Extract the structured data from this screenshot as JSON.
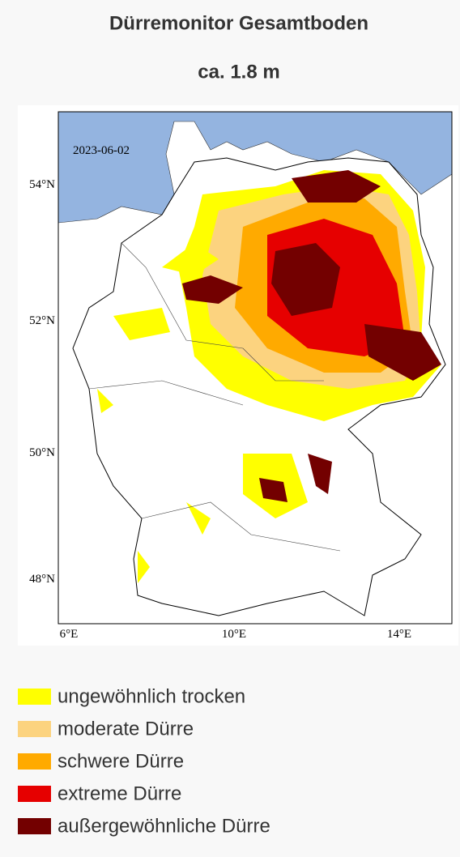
{
  "header": {
    "title": "Dürremonitor Gesamtboden",
    "subtitle": "ca. 1.8 m"
  },
  "map": {
    "date": "2023-06-02",
    "lat_labels": [
      "54°N",
      "52°N",
      "50°N",
      "48°N"
    ],
    "lon_labels": [
      "6°E",
      "10°E",
      "14°E"
    ]
  },
  "legend": [
    {
      "label": "ungewöhnlich trocken",
      "color": "#ffff00"
    },
    {
      "label": "moderate Dürre",
      "color": "#fcd37f"
    },
    {
      "label": "schwere Dürre",
      "color": "#ffaa00"
    },
    {
      "label": "extreme Dürre",
      "color": "#e60000"
    },
    {
      "label": "außergewöhnliche Dürre",
      "color": "#730000"
    }
  ]
}
